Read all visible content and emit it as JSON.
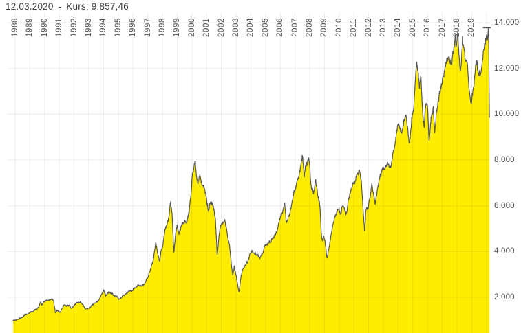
{
  "header": {
    "date": "12.03.2020",
    "separator": "-",
    "kurs_label": "Kurs:",
    "kurs_value": "9.857,46"
  },
  "colors": {
    "background": "#ffffff",
    "area_fill": "#ffed00",
    "line": "#58585a",
    "grid": "rgba(0,0,0,0.075)",
    "axis_text": "#57575a",
    "header_text": "#3d3d40"
  },
  "chart_data": {
    "type": "area",
    "series_name": "Kurs",
    "title": "12.03.2020 - Kurs: 9.857,46",
    "last_point": {
      "date": "12.03.2020",
      "value": 9857.46
    },
    "x_label_years": [
      "1988",
      "1989",
      "1990",
      "1991",
      "1992",
      "1993",
      "1994",
      "1995",
      "1996",
      "1997",
      "1998",
      "1999",
      "2000",
      "2001",
      "2002",
      "2003",
      "2004",
      "2005",
      "2006",
      "2007",
      "2008",
      "2009",
      "2010",
      "2011",
      "2012",
      "2013",
      "2014",
      "2015",
      "2016",
      "2017",
      "2018",
      "2019"
    ],
    "y_tick_labels": [
      "14.000",
      "12.000",
      "10.000",
      "8.000",
      "6.000",
      "4.000",
      "2.000"
    ],
    "y_tick_values": [
      14000,
      12000,
      10000,
      8000,
      6000,
      4000,
      2000
    ],
    "x_range": [
      1987.87,
      2020.2
    ],
    "grid_years": [
      1988,
      1989,
      1990,
      1991,
      1992,
      1993,
      1994,
      1995,
      1996,
      1997,
      1998,
      1999,
      2000,
      2001,
      2002,
      2003,
      2004,
      2005,
      2006,
      2007,
      2008,
      2009,
      2010,
      2011,
      2012,
      2013,
      2014,
      2015,
      2016,
      2017,
      2018,
      2019,
      2020
    ],
    "keypoints": [
      [
        1987.87,
        1005
      ],
      [
        1988.0,
        1000
      ],
      [
        1988.15,
        1060
      ],
      [
        1988.3,
        1120
      ],
      [
        1988.5,
        1180
      ],
      [
        1988.7,
        1230
      ],
      [
        1988.9,
        1290
      ],
      [
        1989.05,
        1340
      ],
      [
        1989.25,
        1400
      ],
      [
        1989.45,
        1470
      ],
      [
        1989.6,
        1560
      ],
      [
        1989.73,
        1780
      ],
      [
        1989.82,
        1630
      ],
      [
        1989.95,
        1770
      ],
      [
        1990.1,
        1850
      ],
      [
        1990.3,
        1910
      ],
      [
        1990.5,
        1960
      ],
      [
        1990.62,
        1870
      ],
      [
        1990.73,
        1350
      ],
      [
        1990.85,
        1460
      ],
      [
        1990.95,
        1390
      ],
      [
        1991.05,
        1350
      ],
      [
        1991.2,
        1550
      ],
      [
        1991.35,
        1680
      ],
      [
        1991.5,
        1610
      ],
      [
        1991.65,
        1640
      ],
      [
        1991.8,
        1560
      ],
      [
        1991.95,
        1590
      ],
      [
        1992.1,
        1700
      ],
      [
        1992.3,
        1760
      ],
      [
        1992.42,
        1800
      ],
      [
        1992.6,
        1680
      ],
      [
        1992.78,
        1420
      ],
      [
        1992.9,
        1510
      ],
      [
        1993.05,
        1560
      ],
      [
        1993.25,
        1680
      ],
      [
        1993.45,
        1750
      ],
      [
        1993.7,
        1890
      ],
      [
        1993.9,
        2110
      ],
      [
        1994.02,
        2270
      ],
      [
        1994.15,
        2070
      ],
      [
        1994.35,
        2230
      ],
      [
        1994.55,
        2110
      ],
      [
        1994.75,
        2010
      ],
      [
        1994.9,
        2090
      ],
      [
        1995.08,
        1930
      ],
      [
        1995.3,
        2030
      ],
      [
        1995.5,
        2130
      ],
      [
        1995.7,
        2230
      ],
      [
        1995.9,
        2260
      ],
      [
        1996.1,
        2390
      ],
      [
        1996.35,
        2490
      ],
      [
        1996.6,
        2570
      ],
      [
        1996.85,
        2730
      ],
      [
        1997.0,
        2900
      ],
      [
        1997.2,
        3260
      ],
      [
        1997.4,
        3720
      ],
      [
        1997.55,
        4430
      ],
      [
        1997.68,
        3920
      ],
      [
        1997.8,
        3580
      ],
      [
        1997.9,
        4110
      ],
      [
        1998.0,
        4260
      ],
      [
        1998.2,
        4920
      ],
      [
        1998.4,
        5460
      ],
      [
        1998.55,
        6170
      ],
      [
        1998.66,
        5510
      ],
      [
        1998.78,
        3910
      ],
      [
        1998.9,
        4810
      ],
      [
        1999.0,
        5060
      ],
      [
        1999.12,
        4690
      ],
      [
        1999.3,
        5160
      ],
      [
        1999.5,
        5410
      ],
      [
        1999.65,
        5260
      ],
      [
        1999.8,
        5710
      ],
      [
        1999.95,
        6610
      ],
      [
        2000.05,
        7460
      ],
      [
        2000.2,
        8090
      ],
      [
        2000.3,
        7510
      ],
      [
        2000.42,
        7110
      ],
      [
        2000.55,
        7460
      ],
      [
        2000.7,
        7010
      ],
      [
        2000.85,
        6810
      ],
      [
        2001.0,
        6440
      ],
      [
        2001.12,
        5860
      ],
      [
        2001.25,
        6250
      ],
      [
        2001.45,
        6110
      ],
      [
        2001.6,
        5410
      ],
      [
        2001.72,
        3790
      ],
      [
        2001.85,
        4810
      ],
      [
        2001.95,
        5160
      ],
      [
        2002.1,
        5310
      ],
      [
        2002.25,
        5410
      ],
      [
        2002.4,
        4760
      ],
      [
        2002.55,
        4260
      ],
      [
        2002.7,
        3260
      ],
      [
        2002.78,
        2860
      ],
      [
        2002.88,
        3310
      ],
      [
        2003.0,
        2960
      ],
      [
        2003.1,
        2560
      ],
      [
        2003.2,
        2210
      ],
      [
        2003.35,
        2960
      ],
      [
        2003.5,
        3260
      ],
      [
        2003.65,
        3460
      ],
      [
        2003.8,
        3610
      ],
      [
        2003.95,
        3960
      ],
      [
        2004.1,
        4110
      ],
      [
        2004.25,
        3960
      ],
      [
        2004.45,
        3860
      ],
      [
        2004.6,
        3710
      ],
      [
        2004.8,
        3910
      ],
      [
        2004.95,
        4240
      ],
      [
        2005.15,
        4310
      ],
      [
        2005.35,
        4410
      ],
      [
        2005.55,
        4610
      ],
      [
        2005.75,
        4910
      ],
      [
        2005.95,
        5410
      ],
      [
        2006.1,
        5660
      ],
      [
        2006.3,
        6110
      ],
      [
        2006.4,
        5360
      ],
      [
        2006.55,
        5510
      ],
      [
        2006.75,
        5910
      ],
      [
        2006.95,
        6610
      ],
      [
        2007.1,
        6910
      ],
      [
        2007.3,
        7410
      ],
      [
        2007.5,
        8090
      ],
      [
        2007.63,
        7310
      ],
      [
        2007.78,
        7910
      ],
      [
        2007.95,
        8070
      ],
      [
        2008.1,
        6760
      ],
      [
        2008.25,
        6510
      ],
      [
        2008.4,
        7110
      ],
      [
        2008.55,
        6410
      ],
      [
        2008.7,
        5910
      ],
      [
        2008.78,
        4810
      ],
      [
        2008.85,
        4410
      ],
      [
        2008.95,
        4710
      ],
      [
        2009.05,
        4360
      ],
      [
        2009.18,
        3700
      ],
      [
        2009.35,
        4310
      ],
      [
        2009.5,
        4910
      ],
      [
        2009.65,
        5360
      ],
      [
        2009.8,
        5710
      ],
      [
        2009.95,
        5960
      ],
      [
        2010.1,
        5660
      ],
      [
        2010.25,
        6160
      ],
      [
        2010.38,
        5960
      ],
      [
        2010.47,
        5680
      ],
      [
        2010.6,
        6210
      ],
      [
        2010.8,
        6610
      ],
      [
        2010.95,
        7010
      ],
      [
        2011.1,
        7210
      ],
      [
        2011.25,
        7310
      ],
      [
        2011.37,
        7600
      ],
      [
        2011.5,
        7160
      ],
      [
        2011.62,
        5910
      ],
      [
        2011.73,
        5010
      ],
      [
        2011.82,
        5910
      ],
      [
        2011.95,
        5900
      ],
      [
        2012.1,
        6460
      ],
      [
        2012.22,
        7050
      ],
      [
        2012.45,
        6050
      ],
      [
        2012.6,
        6710
      ],
      [
        2012.8,
        7310
      ],
      [
        2012.95,
        7610
      ],
      [
        2013.1,
        7710
      ],
      [
        2013.3,
        7860
      ],
      [
        2013.45,
        7560
      ],
      [
        2013.6,
        8110
      ],
      [
        2013.8,
        8710
      ],
      [
        2013.95,
        9410
      ],
      [
        2014.05,
        9560
      ],
      [
        2014.2,
        9160
      ],
      [
        2014.4,
        9710
      ],
      [
        2014.5,
        9950
      ],
      [
        2014.65,
        9360
      ],
      [
        2014.77,
        8570
      ],
      [
        2014.92,
        9810
      ],
      [
        2015.05,
        10300
      ],
      [
        2015.18,
        11600
      ],
      [
        2015.28,
        12380
      ],
      [
        2015.45,
        11310
      ],
      [
        2015.55,
        11610
      ],
      [
        2015.68,
        9910
      ],
      [
        2015.76,
        9330
      ],
      [
        2015.88,
        10510
      ],
      [
        2016.0,
        10310
      ],
      [
        2016.1,
        8850
      ],
      [
        2016.25,
        9910
      ],
      [
        2016.4,
        10210
      ],
      [
        2016.49,
        9310
      ],
      [
        2016.6,
        10110
      ],
      [
        2016.75,
        10610
      ],
      [
        2016.95,
        11410
      ],
      [
        2017.1,
        11610
      ],
      [
        2017.3,
        12310
      ],
      [
        2017.45,
        12710
      ],
      [
        2017.6,
        12310
      ],
      [
        2017.8,
        13110
      ],
      [
        2017.88,
        13480
      ],
      [
        2017.96,
        12960
      ],
      [
        2018.05,
        13560
      ],
      [
        2018.15,
        12310
      ],
      [
        2018.25,
        11790
      ],
      [
        2018.38,
        13170
      ],
      [
        2018.55,
        12310
      ],
      [
        2018.7,
        12410
      ],
      [
        2018.82,
        11210
      ],
      [
        2018.96,
        10410
      ],
      [
        2019.08,
        10960
      ],
      [
        2019.25,
        11960
      ],
      [
        2019.35,
        12310
      ],
      [
        2019.45,
        11760
      ],
      [
        2019.6,
        11610
      ],
      [
        2019.72,
        12310
      ],
      [
        2019.85,
        12910
      ],
      [
        2019.98,
        13260
      ],
      [
        2020.07,
        13310
      ],
      [
        2020.13,
        13780
      ],
      [
        2020.155,
        13100
      ],
      [
        2020.175,
        11800
      ],
      [
        2020.19,
        10500
      ],
      [
        2020.2,
        9857.46
      ]
    ]
  }
}
